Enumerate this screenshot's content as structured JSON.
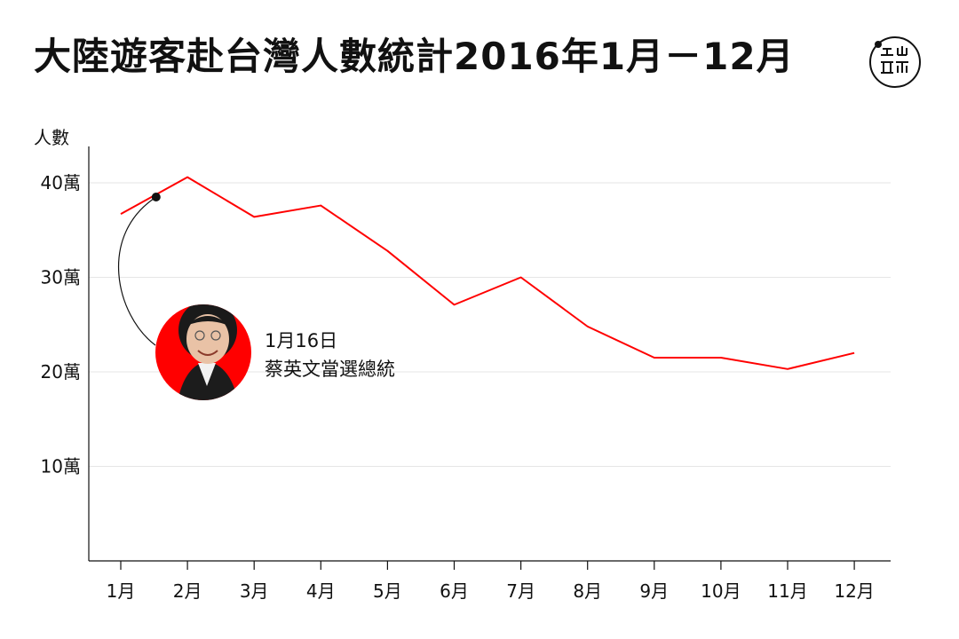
{
  "title": "大陸遊客赴台灣人數統計2016年1月－12月",
  "logo_icon": "端-logo-icon",
  "colors": {
    "line": "#ff0000",
    "grid": "#e6e6e6",
    "axis": "#111111",
    "portrait_bg": "#ff0000"
  },
  "chart_data": {
    "type": "line",
    "title": "大陸遊客赴台灣人數統計2016年1月－12月",
    "ylabel": "人數",
    "xlabel": "",
    "categories": [
      "1月",
      "2月",
      "3月",
      "4月",
      "5月",
      "6月",
      "7月",
      "8月",
      "9月",
      "10月",
      "11月",
      "12月"
    ],
    "values": [
      36.7,
      40.6,
      36.4,
      37.6,
      32.8,
      27.1,
      30.0,
      24.8,
      21.5,
      21.5,
      20.3,
      22.0
    ],
    "unit": "萬",
    "ylim": [
      0,
      44
    ],
    "yticks": [
      {
        "value": 10,
        "label": "10萬"
      },
      {
        "value": 20,
        "label": "20萬"
      },
      {
        "value": 30,
        "label": "30萬"
      },
      {
        "value": 40,
        "label": "40萬"
      }
    ],
    "grid": true,
    "legend": "none",
    "annotation": {
      "x": 1.53,
      "y": 38.5,
      "date_label": "1月16日",
      "event_label": "蔡英文當選總統",
      "image": "portrait-photo"
    }
  }
}
